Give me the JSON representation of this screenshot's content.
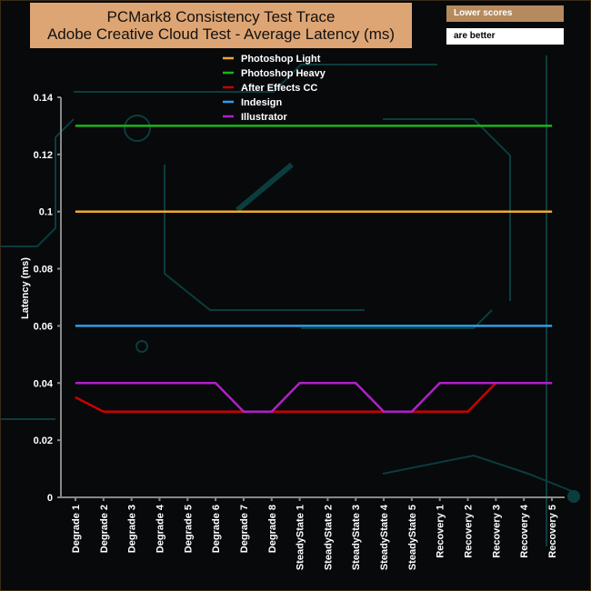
{
  "chart_data": {
    "type": "line",
    "title": "PCMark8 Consistency Test Trace",
    "subtitle": "Adobe Creative Cloud Test -  Average Latency (ms)",
    "note": [
      "Lower scores",
      "are better"
    ],
    "ylabel": "Latency (ms)",
    "xlabel": "",
    "ylim": [
      0,
      0.14
    ],
    "yticks": [
      "0",
      "0.02",
      "0.04",
      "0.06",
      "0.08",
      "0.1",
      "0.12",
      "0.14"
    ],
    "grid": false,
    "legend": "top-center",
    "categories": [
      "Degrade 1",
      "Degrade 2",
      "Degrade 3",
      "Degrade 4",
      "Degrade 5",
      "Degrade 6",
      "Degrade 7",
      "Degrade 8",
      "SteadyState 1",
      "SteadyState 2",
      "SteadyState 3",
      "SteadyState 4",
      "SteadyState 5",
      "Recovery 1",
      "Recovery 2",
      "Recovery 3",
      "Recovery 4",
      "Recovery 5"
    ],
    "series": [
      {
        "name": "Photoshop Light",
        "color": "#f0a830",
        "values": [
          0.1,
          0.1,
          0.1,
          0.1,
          0.1,
          0.1,
          0.1,
          0.1,
          0.1,
          0.1,
          0.1,
          0.1,
          0.1,
          0.1,
          0.1,
          0.1,
          0.1,
          0.1
        ]
      },
      {
        "name": " Photoshop Heavy",
        "color": "#1db31d",
        "values": [
          0.13,
          0.13,
          0.13,
          0.13,
          0.13,
          0.13,
          0.13,
          0.13,
          0.13,
          0.13,
          0.13,
          0.13,
          0.13,
          0.13,
          0.13,
          0.13,
          0.13,
          0.13
        ]
      },
      {
        "name": "After Effects CC",
        "color": "#cc0000",
        "values": [
          0.035,
          0.03,
          0.03,
          0.03,
          0.03,
          0.03,
          0.03,
          0.03,
          0.03,
          0.03,
          0.03,
          0.03,
          0.03,
          0.03,
          0.03,
          0.04,
          0.04,
          0.04
        ]
      },
      {
        "name": "Indesign",
        "color": "#2e9fe6",
        "values": [
          0.06,
          0.06,
          0.06,
          0.06,
          0.06,
          0.06,
          0.06,
          0.06,
          0.06,
          0.06,
          0.06,
          0.06,
          0.06,
          0.06,
          0.06,
          0.06,
          0.06,
          0.06
        ]
      },
      {
        "name": "Illustrator",
        "color": "#b020c8",
        "values": [
          0.04,
          0.04,
          0.04,
          0.04,
          0.04,
          0.04,
          0.03,
          0.03,
          0.04,
          0.04,
          0.04,
          0.03,
          0.03,
          0.04,
          0.04,
          0.04,
          0.04,
          0.04
        ]
      }
    ]
  }
}
